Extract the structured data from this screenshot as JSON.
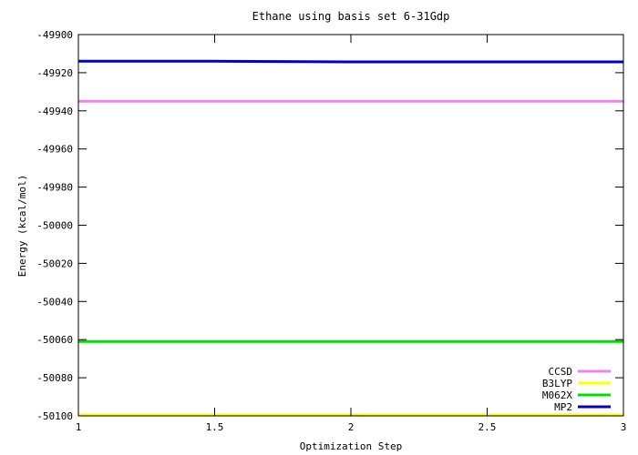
{
  "chart_data": {
    "type": "line",
    "title": "Ethane using basis set 6-31Gdp",
    "xlabel": "Optimization Step",
    "ylabel": "Energy (kcal/mol)",
    "xlim": [
      1,
      3
    ],
    "ylim": [
      -50100,
      -49900
    ],
    "x_ticks": [
      1,
      1.5,
      2,
      2.5,
      3
    ],
    "x_tick_labels": [
      "1",
      "1.5",
      "2",
      "2.5",
      "3"
    ],
    "y_ticks": [
      -49900,
      -49920,
      -49940,
      -49960,
      -49980,
      -50000,
      -50020,
      -50040,
      -50060,
      -50080,
      -50100
    ],
    "y_tick_labels": [
      "-49900",
      "-49920",
      "-49940",
      "-49960",
      "-49980",
      "-50000",
      "-50020",
      "-50040",
      "-50060",
      "-50080",
      "-50100"
    ],
    "grid": false,
    "legend_position": "bottom-right",
    "series": [
      {
        "name": "CCSD",
        "color": "#ee82ee",
        "x": [
          1,
          2,
          3
        ],
        "y": [
          -49935,
          -49935,
          -49935
        ]
      },
      {
        "name": "B3LYP",
        "color": "#ffff00",
        "x": [
          1,
          2,
          3
        ],
        "y": [
          -50099.5,
          -50099.5,
          -50099.5
        ]
      },
      {
        "name": "M062X",
        "color": "#00dd00",
        "x": [
          1,
          2,
          3
        ],
        "y": [
          -50061,
          -50061,
          -50061
        ]
      },
      {
        "name": "MP2",
        "color": "#0000cc",
        "x": [
          1,
          1.5,
          2,
          3
        ],
        "y": [
          -49914,
          -49914,
          -49914.3,
          -49914.3
        ]
      }
    ]
  }
}
